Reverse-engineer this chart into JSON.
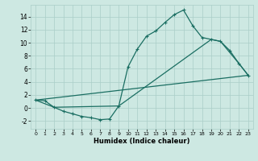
{
  "xlabel": "Humidex (Indice chaleur)",
  "x_ticks": [
    0,
    1,
    2,
    3,
    4,
    5,
    6,
    7,
    8,
    9,
    10,
    11,
    12,
    13,
    14,
    15,
    16,
    17,
    18,
    19,
    20,
    21,
    22,
    23
  ],
  "xlim": [
    -0.5,
    23.5
  ],
  "ylim": [
    -3.2,
    15.8
  ],
  "y_ticks": [
    -2,
    0,
    2,
    4,
    6,
    8,
    10,
    12,
    14
  ],
  "bg_color": "#cde8e2",
  "grid_color": "#aacec8",
  "line_color": "#1a6e62",
  "series1_x": [
    0,
    1,
    2,
    3,
    4,
    5,
    6,
    7,
    8,
    9,
    10,
    11,
    12,
    13,
    14,
    15,
    16,
    17,
    18,
    19,
    20,
    21,
    22,
    23
  ],
  "series1_y": [
    1.2,
    1.1,
    0.1,
    -0.5,
    -0.9,
    -1.3,
    -1.5,
    -1.8,
    -1.7,
    0.3,
    6.3,
    9.0,
    11.0,
    11.8,
    13.1,
    14.3,
    15.0,
    12.6,
    10.8,
    10.5,
    10.2,
    8.8,
    6.8,
    5.0
  ],
  "series2_x": [
    0,
    2,
    9,
    19,
    20,
    22,
    23
  ],
  "series2_y": [
    1.2,
    0.1,
    0.3,
    10.5,
    10.2,
    6.8,
    5.0
  ],
  "series3_x": [
    0,
    23
  ],
  "series3_y": [
    1.2,
    5.0
  ]
}
